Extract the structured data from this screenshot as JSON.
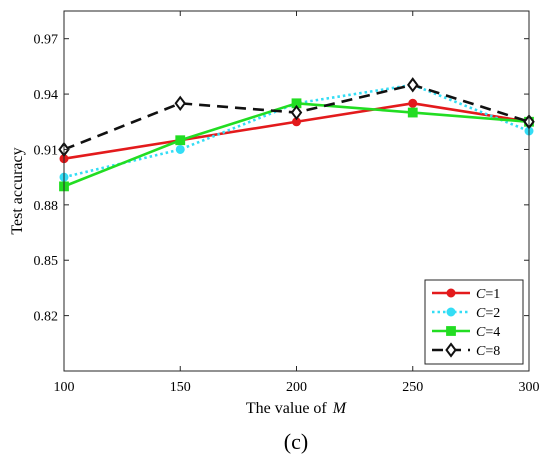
{
  "chart_data": {
    "type": "line",
    "x": [
      100,
      150,
      200,
      250,
      300
    ],
    "xlim": [
      100,
      300
    ],
    "ylim": [
      0.79,
      0.985
    ],
    "xticks": [
      100,
      150,
      200,
      250,
      300
    ],
    "yticks": [
      0.82,
      0.85,
      0.88,
      0.91,
      0.94,
      0.97
    ],
    "ytick_labels": [
      "0.82",
      "0.85",
      "0.88",
      "0.91",
      "0.94",
      "0.97"
    ],
    "xlabel_prefix": "The value of",
    "xlabel_var": "M",
    "ylabel": "Test accuracy",
    "legend_position": "bottom-right",
    "grid": false,
    "series": [
      {
        "name_var": "C",
        "name_rest": "=1",
        "color": "#e31a1c",
        "dash": "solid",
        "marker": "circle",
        "values": [
          0.905,
          0.915,
          0.925,
          0.935,
          0.925
        ]
      },
      {
        "name_var": "C",
        "name_rest": "=2",
        "color": "#33ddf5",
        "dash": "dotted",
        "marker": "circle",
        "values": [
          0.895,
          0.91,
          0.935,
          0.945,
          0.92
        ]
      },
      {
        "name_var": "C",
        "name_rest": "=4",
        "color": "#22dd22",
        "dash": "solid",
        "marker": "square",
        "values": [
          0.89,
          0.915,
          0.935,
          0.93,
          0.925
        ]
      },
      {
        "name_var": "C",
        "name_rest": "=8",
        "color": "#111111",
        "dash": "dashed",
        "marker": "diamond",
        "values": [
          0.91,
          0.935,
          0.93,
          0.945,
          0.925
        ]
      }
    ]
  },
  "panel_label": "(c)"
}
